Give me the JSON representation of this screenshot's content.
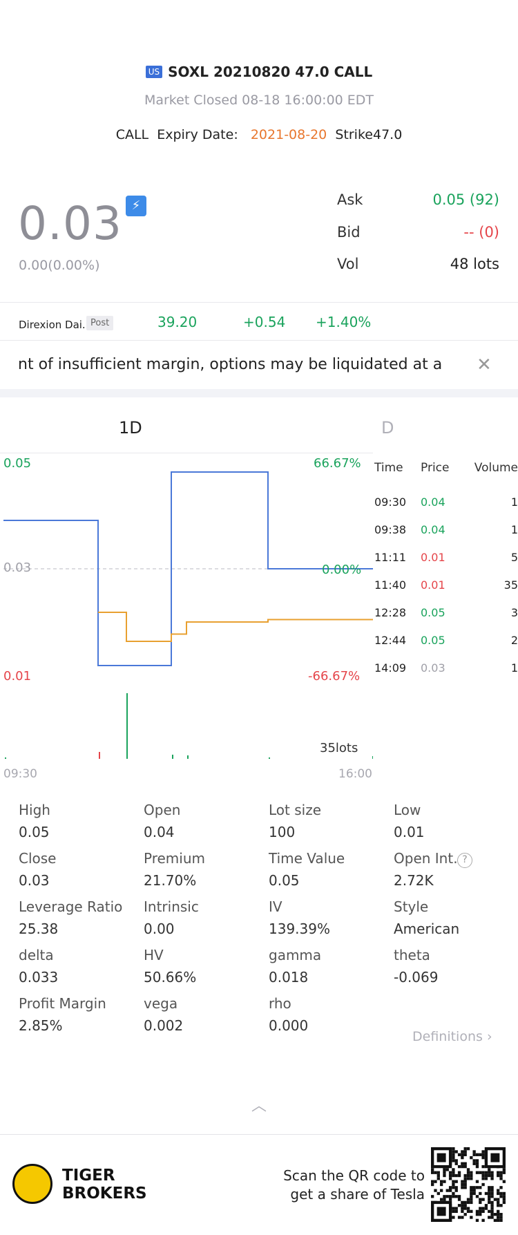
{
  "header": {
    "region_badge": "US",
    "symbol": "SOXL 20210820 47.0 CALL",
    "status": "Market Closed  08-18 16:00:00 EDT",
    "type": "CALL",
    "expiry_label": "Expiry Date:",
    "expiry_value": "2021-08-20",
    "strike_label": "Strike",
    "strike_value": "47.0"
  },
  "quote": {
    "price": "0.03",
    "change": "0.00(0.00%)",
    "ask_label": "Ask",
    "ask_value": "0.05 (92)",
    "bid_label": "Bid",
    "bid_value": "-- (0)",
    "vol_label": "Vol",
    "vol_value": "48 lots"
  },
  "underlying": {
    "name": "Direxion Dai...",
    "session": "Post",
    "price": "39.20",
    "change": "+0.54",
    "change_pct": "+1.40%"
  },
  "warning": {
    "text": "nt of insufficient margin, options may be liquidated at a"
  },
  "tabs": [
    {
      "label": "1D"
    },
    {
      "label": "D"
    }
  ],
  "chart": {
    "high_price": "0.05",
    "high_pct": "66.67%",
    "mid_price": "0.03",
    "mid_pct": "0.00%",
    "low_price": "0.01",
    "low_pct": "-66.67%",
    "vol_label": "35lots",
    "time_start": "09:30",
    "time_end": "16:00"
  },
  "chart_data": {
    "type": "line",
    "x": [
      "09:30",
      "09:38",
      "11:11",
      "11:40",
      "12:28",
      "12:44",
      "14:09",
      "16:00"
    ],
    "series": [
      {
        "values": [
          0.04,
          0.04,
          0.01,
          0.01,
          0.05,
          0.05,
          0.03,
          0.03
        ],
        "color": "#4a78d8"
      },
      {
        "values": [
          null,
          null,
          0.021,
          0.015,
          0.017,
          0.019,
          0.0195,
          0.02
        ],
        "color": "#e8a030"
      }
    ],
    "ylim": [
      0.01,
      0.05
    ],
    "colors": {
      "price": "#4a78d8",
      "avg": "#e8a030",
      "volume_up": "#1aa35c",
      "volume_down": "#e5454a"
    }
  },
  "ticks": {
    "headers": [
      "Time",
      "Price",
      "Volume"
    ],
    "rows": [
      {
        "time": "09:30",
        "price": "0.04",
        "volume": "1",
        "color": "green"
      },
      {
        "time": "09:38",
        "price": "0.04",
        "volume": "1",
        "color": "green"
      },
      {
        "time": "11:11",
        "price": "0.01",
        "volume": "5",
        "color": "red"
      },
      {
        "time": "11:40",
        "price": "0.01",
        "volume": "35",
        "color": "red"
      },
      {
        "time": "12:28",
        "price": "0.05",
        "volume": "3",
        "color": "green"
      },
      {
        "time": "12:44",
        "price": "0.05",
        "volume": "2",
        "color": "green"
      },
      {
        "time": "14:09",
        "price": "0.03",
        "volume": "1",
        "color": "grey"
      }
    ]
  },
  "stats": [
    {
      "k": "High",
      "v": "0.05"
    },
    {
      "k": "Open",
      "v": "0.04"
    },
    {
      "k": "Lot size",
      "v": "100"
    },
    {
      "k": "Low",
      "v": "0.01"
    },
    {
      "k": "Close",
      "v": "0.03"
    },
    {
      "k": "Premium",
      "v": "21.70%"
    },
    {
      "k": "Time Value",
      "v": "0.05"
    },
    {
      "k": "Open Int.",
      "v": "2.72K"
    },
    {
      "k": "Leverage Ratio",
      "v": "25.38"
    },
    {
      "k": "Intrinsic",
      "v": "0.00"
    },
    {
      "k": "IV",
      "v": "139.39%"
    },
    {
      "k": "Style",
      "v": "American"
    },
    {
      "k": "delta",
      "v": "0.033"
    },
    {
      "k": "HV",
      "v": "50.66%"
    },
    {
      "k": "gamma",
      "v": "0.018"
    },
    {
      "k": "theta",
      "v": "-0.069"
    },
    {
      "k": "Profit Margin",
      "v": "2.85%"
    },
    {
      "k": "vega",
      "v": "0.002"
    },
    {
      "k": "rho",
      "v": "0.000"
    }
  ],
  "definitions_label": "Definitions",
  "footer": {
    "brand_line1": "TIGER",
    "brand_line2": "BROKERS",
    "scan_line1": "Scan the QR code to",
    "scan_line2": "get a share of Tesla"
  }
}
